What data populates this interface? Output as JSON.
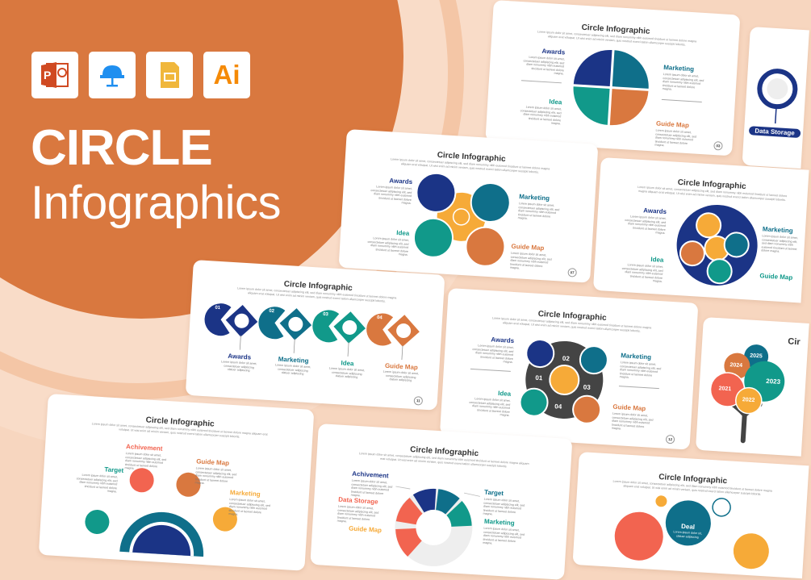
{
  "hero": {
    "title_line1": "CIRCLE",
    "title_line2": "Infographics",
    "apps": [
      {
        "name": "PowerPoint",
        "glyph": "P"
      },
      {
        "name": "Keynote",
        "glyph": ""
      },
      {
        "name": "Google Slides",
        "glyph": ""
      },
      {
        "name": "Illustrator",
        "glyph": "Ai"
      }
    ]
  },
  "colors": {
    "background": "#f7d6bf",
    "orange_circle": "#d9783f",
    "navy": "#1b3486",
    "teal_blue": "#0f6f8a",
    "teal": "#11998a",
    "orange": "#d9783f",
    "coral": "#f26450",
    "yellow": "#f6aa38",
    "dark": "#444444"
  },
  "lorem": {
    "subtitle": "Lorem ipsum dolor sit amet, consectetuer adipiscing elit, sed diam nonummy nibh euismod tincidunt ut laoreet dolore magna aliquam erat volutpat. Ut wisi enim ad minim veniam, quis nostrud exerci tation ullamcorper suscipit lobortis.",
    "block": "Lorem ipsum dolor sit amet, consectetuer adipiscing elit, sed diam nonummy nibh euismod tincidunt ut laoreet dolore magna.",
    "short": "Lorem ipsum dolor sit amet, consectetuer adipiscing clatuer adipiscing"
  },
  "slides": {
    "s03": {
      "title": "Circle Infographic",
      "labels": [
        "Awards",
        "Marketing",
        "Idea",
        "Guide Map"
      ],
      "page": "03"
    },
    "sds": {
      "label": "Data Storage"
    },
    "s07": {
      "title": "Circle Infographic",
      "labels": [
        "Awards",
        "Marketing",
        "Idea",
        "Guide Map"
      ],
      "page": "07"
    },
    "sd": {
      "title": "Circle Infographic",
      "labels": [
        "Awards",
        "Marketing",
        "Idea",
        "Guide Map"
      ]
    },
    "s11": {
      "title": "Circle Infographic",
      "steps": [
        {
          "n": "01",
          "label": "Awards"
        },
        {
          "n": "02",
          "label": "Marketing"
        },
        {
          "n": "03",
          "label": "Idea"
        },
        {
          "n": "04",
          "label": "Guide Map"
        }
      ],
      "page": "11"
    },
    "s12": {
      "title": "Circle Infographic",
      "labels": [
        "Awards",
        "Marketing",
        "Idea",
        "Guide Map"
      ],
      "nums": [
        "01",
        "02",
        "03",
        "04"
      ],
      "page": "12"
    },
    "tree": {
      "title": "Cir",
      "years": [
        "2021",
        "2022",
        "2023",
        "2024",
        "2025"
      ]
    },
    "sh": {
      "title": "Circle Infographic",
      "labels": [
        "Achivement",
        "Guide Map",
        "Target",
        "Marketing"
      ]
    },
    "si": {
      "title": "Circle Infographic",
      "labels": [
        "Achivement",
        "Target",
        "Data Storage",
        "Marketing",
        "Guide Map"
      ]
    },
    "sj": {
      "title": "Circle Infographic",
      "labels": [
        "Deal"
      ],
      "deal_text": "Lorem ipsum dolor sit, clatuer adipiscing"
    }
  }
}
